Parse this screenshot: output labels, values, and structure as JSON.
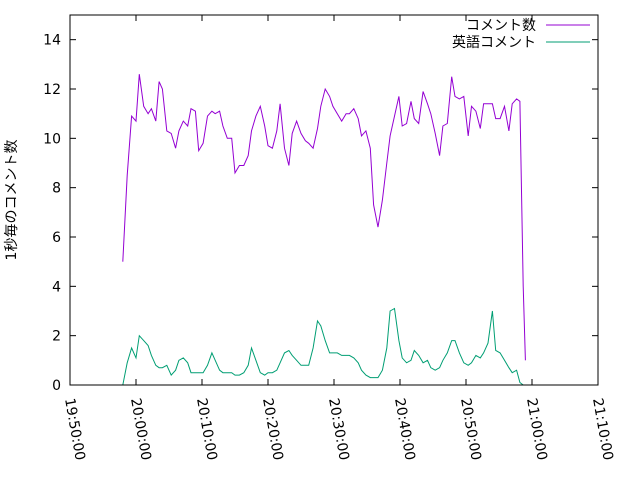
{
  "chart_data": {
    "type": "line",
    "title": "",
    "xlabel": "",
    "ylabel": "1秒毎のコメント数",
    "xlim": [
      "19:50:00",
      "21:10:00"
    ],
    "ylim": [
      0,
      15
    ],
    "x_ticks": [
      "19:50:00",
      "20:00:00",
      "20:10:00",
      "20:20:00",
      "20:30:00",
      "20:40:00",
      "20:50:00",
      "21:00:00",
      "21:10:00"
    ],
    "y_ticks": [
      "0",
      "2",
      "4",
      "6",
      "8",
      "10",
      "12",
      "14"
    ],
    "grid": false,
    "legend": "top-right",
    "series": [
      {
        "name": "コメント数",
        "color": "#9400d3",
        "points": [
          [
            "19:58:00",
            5.0
          ],
          [
            "19:58:40",
            8.5
          ],
          [
            "19:59:20",
            10.9
          ],
          [
            "20:00:00",
            10.7
          ],
          [
            "20:00:30",
            12.6
          ],
          [
            "20:01:10",
            11.3
          ],
          [
            "20:01:50",
            11.0
          ],
          [
            "20:02:20",
            11.2
          ],
          [
            "20:03:00",
            10.7
          ],
          [
            "20:03:30",
            12.3
          ],
          [
            "20:04:00",
            12.0
          ],
          [
            "20:04:40",
            10.3
          ],
          [
            "20:05:20",
            10.2
          ],
          [
            "20:06:00",
            9.6
          ],
          [
            "20:06:30",
            10.3
          ],
          [
            "20:07:10",
            10.7
          ],
          [
            "20:07:50",
            10.5
          ],
          [
            "20:08:20",
            11.2
          ],
          [
            "20:09:00",
            11.1
          ],
          [
            "20:09:30",
            9.5
          ],
          [
            "20:10:10",
            9.8
          ],
          [
            "20:10:50",
            10.9
          ],
          [
            "20:11:30",
            11.1
          ],
          [
            "20:12:00",
            11.0
          ],
          [
            "20:12:40",
            11.1
          ],
          [
            "20:13:10",
            10.5
          ],
          [
            "20:13:50",
            10.0
          ],
          [
            "20:14:30",
            10.0
          ],
          [
            "20:15:00",
            8.6
          ],
          [
            "20:15:40",
            8.9
          ],
          [
            "20:16:20",
            8.9
          ],
          [
            "20:17:00",
            9.3
          ],
          [
            "20:17:30",
            10.3
          ],
          [
            "20:18:10",
            10.9
          ],
          [
            "20:18:50",
            11.3
          ],
          [
            "20:19:30",
            10.5
          ],
          [
            "20:20:00",
            9.7
          ],
          [
            "20:20:40",
            9.6
          ],
          [
            "20:21:20",
            10.3
          ],
          [
            "20:21:50",
            11.4
          ],
          [
            "20:22:30",
            9.6
          ],
          [
            "20:23:10",
            8.9
          ],
          [
            "20:23:40",
            10.2
          ],
          [
            "20:24:20",
            10.7
          ],
          [
            "20:25:00",
            10.2
          ],
          [
            "20:25:40",
            9.9
          ],
          [
            "20:26:10",
            9.8
          ],
          [
            "20:26:50",
            9.6
          ],
          [
            "20:27:30",
            10.4
          ],
          [
            "20:28:00",
            11.3
          ],
          [
            "20:28:40",
            12.0
          ],
          [
            "20:29:20",
            11.7
          ],
          [
            "20:29:50",
            11.3
          ],
          [
            "20:30:30",
            11.0
          ],
          [
            "20:31:10",
            10.7
          ],
          [
            "20:31:50",
            11.0
          ],
          [
            "20:32:20",
            11.0
          ],
          [
            "20:33:00",
            11.2
          ],
          [
            "20:33:40",
            10.8
          ],
          [
            "20:34:10",
            10.1
          ],
          [
            "20:34:50",
            10.3
          ],
          [
            "20:35:30",
            9.6
          ],
          [
            "20:36:00",
            7.3
          ],
          [
            "20:36:40",
            6.4
          ],
          [
            "20:37:20",
            7.5
          ],
          [
            "20:38:00",
            9.0
          ],
          [
            "20:38:30",
            10.1
          ],
          [
            "20:39:10",
            10.9
          ],
          [
            "20:39:50",
            11.7
          ],
          [
            "20:40:20",
            10.5
          ],
          [
            "20:41:00",
            10.6
          ],
          [
            "20:41:40",
            11.5
          ],
          [
            "20:42:10",
            10.8
          ],
          [
            "20:42:50",
            10.6
          ],
          [
            "20:43:30",
            11.9
          ],
          [
            "20:44:10",
            11.4
          ],
          [
            "20:44:40",
            11.0
          ],
          [
            "20:45:20",
            10.2
          ],
          [
            "20:46:00",
            9.3
          ],
          [
            "20:46:30",
            10.5
          ],
          [
            "20:47:10",
            10.6
          ],
          [
            "20:47:50",
            12.5
          ],
          [
            "20:48:20",
            11.7
          ],
          [
            "20:49:00",
            11.6
          ],
          [
            "20:49:40",
            11.7
          ],
          [
            "20:50:20",
            10.1
          ],
          [
            "20:50:50",
            11.3
          ],
          [
            "20:51:30",
            11.1
          ],
          [
            "20:52:10",
            10.4
          ],
          [
            "20:52:40",
            11.4
          ],
          [
            "20:53:20",
            11.4
          ],
          [
            "20:54:00",
            11.4
          ],
          [
            "20:54:30",
            10.8
          ],
          [
            "20:55:10",
            10.8
          ],
          [
            "20:55:50",
            11.3
          ],
          [
            "20:56:30",
            10.3
          ],
          [
            "20:57:00",
            11.4
          ],
          [
            "20:57:40",
            11.6
          ],
          [
            "20:58:10",
            11.5
          ],
          [
            "20:58:40",
            4.0
          ],
          [
            "20:59:00",
            1.0
          ]
        ]
      },
      {
        "name": "英語コメント",
        "color": "#009e73",
        "points": [
          [
            "19:58:00",
            0.0
          ],
          [
            "19:58:40",
            0.9
          ],
          [
            "19:59:20",
            1.5
          ],
          [
            "20:00:00",
            1.1
          ],
          [
            "20:00:30",
            2.0
          ],
          [
            "20:01:10",
            1.8
          ],
          [
            "20:01:50",
            1.6
          ],
          [
            "20:02:20",
            1.2
          ],
          [
            "20:03:00",
            0.8
          ],
          [
            "20:03:30",
            0.7
          ],
          [
            "20:04:00",
            0.7
          ],
          [
            "20:04:40",
            0.8
          ],
          [
            "20:05:20",
            0.4
          ],
          [
            "20:06:00",
            0.6
          ],
          [
            "20:06:30",
            1.0
          ],
          [
            "20:07:10",
            1.1
          ],
          [
            "20:07:50",
            0.9
          ],
          [
            "20:08:20",
            0.5
          ],
          [
            "20:09:00",
            0.5
          ],
          [
            "20:09:30",
            0.5
          ],
          [
            "20:10:10",
            0.5
          ],
          [
            "20:10:50",
            0.8
          ],
          [
            "20:11:30",
            1.3
          ],
          [
            "20:12:00",
            1.0
          ],
          [
            "20:12:40",
            0.6
          ],
          [
            "20:13:10",
            0.5
          ],
          [
            "20:13:50",
            0.5
          ],
          [
            "20:14:30",
            0.5
          ],
          [
            "20:15:00",
            0.4
          ],
          [
            "20:15:40",
            0.4
          ],
          [
            "20:16:20",
            0.5
          ],
          [
            "20:17:00",
            0.8
          ],
          [
            "20:17:30",
            1.5
          ],
          [
            "20:18:10",
            1.0
          ],
          [
            "20:18:50",
            0.5
          ],
          [
            "20:19:30",
            0.4
          ],
          [
            "20:20:00",
            0.5
          ],
          [
            "20:20:40",
            0.5
          ],
          [
            "20:21:20",
            0.6
          ],
          [
            "20:21:50",
            0.9
          ],
          [
            "20:22:30",
            1.3
          ],
          [
            "20:23:10",
            1.4
          ],
          [
            "20:23:40",
            1.2
          ],
          [
            "20:24:20",
            1.0
          ],
          [
            "20:25:00",
            0.8
          ],
          [
            "20:25:40",
            0.8
          ],
          [
            "20:26:10",
            0.8
          ],
          [
            "20:26:50",
            1.5
          ],
          [
            "20:27:30",
            2.6
          ],
          [
            "20:28:00",
            2.4
          ],
          [
            "20:28:40",
            1.8
          ],
          [
            "20:29:20",
            1.3
          ],
          [
            "20:29:50",
            1.3
          ],
          [
            "20:30:30",
            1.3
          ],
          [
            "20:31:10",
            1.2
          ],
          [
            "20:31:50",
            1.2
          ],
          [
            "20:32:20",
            1.2
          ],
          [
            "20:33:00",
            1.1
          ],
          [
            "20:33:40",
            0.9
          ],
          [
            "20:34:10",
            0.6
          ],
          [
            "20:34:50",
            0.4
          ],
          [
            "20:35:30",
            0.3
          ],
          [
            "20:36:00",
            0.3
          ],
          [
            "20:36:40",
            0.3
          ],
          [
            "20:37:20",
            0.6
          ],
          [
            "20:38:00",
            1.5
          ],
          [
            "20:38:30",
            3.0
          ],
          [
            "20:39:10",
            3.1
          ],
          [
            "20:39:50",
            1.8
          ],
          [
            "20:40:20",
            1.1
          ],
          [
            "20:41:00",
            0.9
          ],
          [
            "20:41:40",
            1.0
          ],
          [
            "20:42:10",
            1.4
          ],
          [
            "20:42:50",
            1.2
          ],
          [
            "20:43:30",
            0.9
          ],
          [
            "20:44:10",
            1.0
          ],
          [
            "20:44:40",
            0.7
          ],
          [
            "20:45:20",
            0.6
          ],
          [
            "20:46:00",
            0.7
          ],
          [
            "20:46:30",
            1.0
          ],
          [
            "20:47:10",
            1.3
          ],
          [
            "20:47:50",
            1.8
          ],
          [
            "20:48:20",
            1.8
          ],
          [
            "20:49:00",
            1.3
          ],
          [
            "20:49:40",
            0.9
          ],
          [
            "20:50:20",
            0.8
          ],
          [
            "20:50:50",
            0.9
          ],
          [
            "20:51:30",
            1.2
          ],
          [
            "20:52:10",
            1.1
          ],
          [
            "20:52:40",
            1.3
          ],
          [
            "20:53:20",
            1.7
          ],
          [
            "20:54:00",
            3.0
          ],
          [
            "20:54:30",
            1.4
          ],
          [
            "20:55:10",
            1.3
          ],
          [
            "20:55:50",
            1.0
          ],
          [
            "20:56:30",
            0.7
          ],
          [
            "20:57:00",
            0.5
          ],
          [
            "20:57:40",
            0.6
          ],
          [
            "20:58:10",
            0.1
          ],
          [
            "20:58:40",
            0.0
          ]
        ]
      }
    ]
  }
}
